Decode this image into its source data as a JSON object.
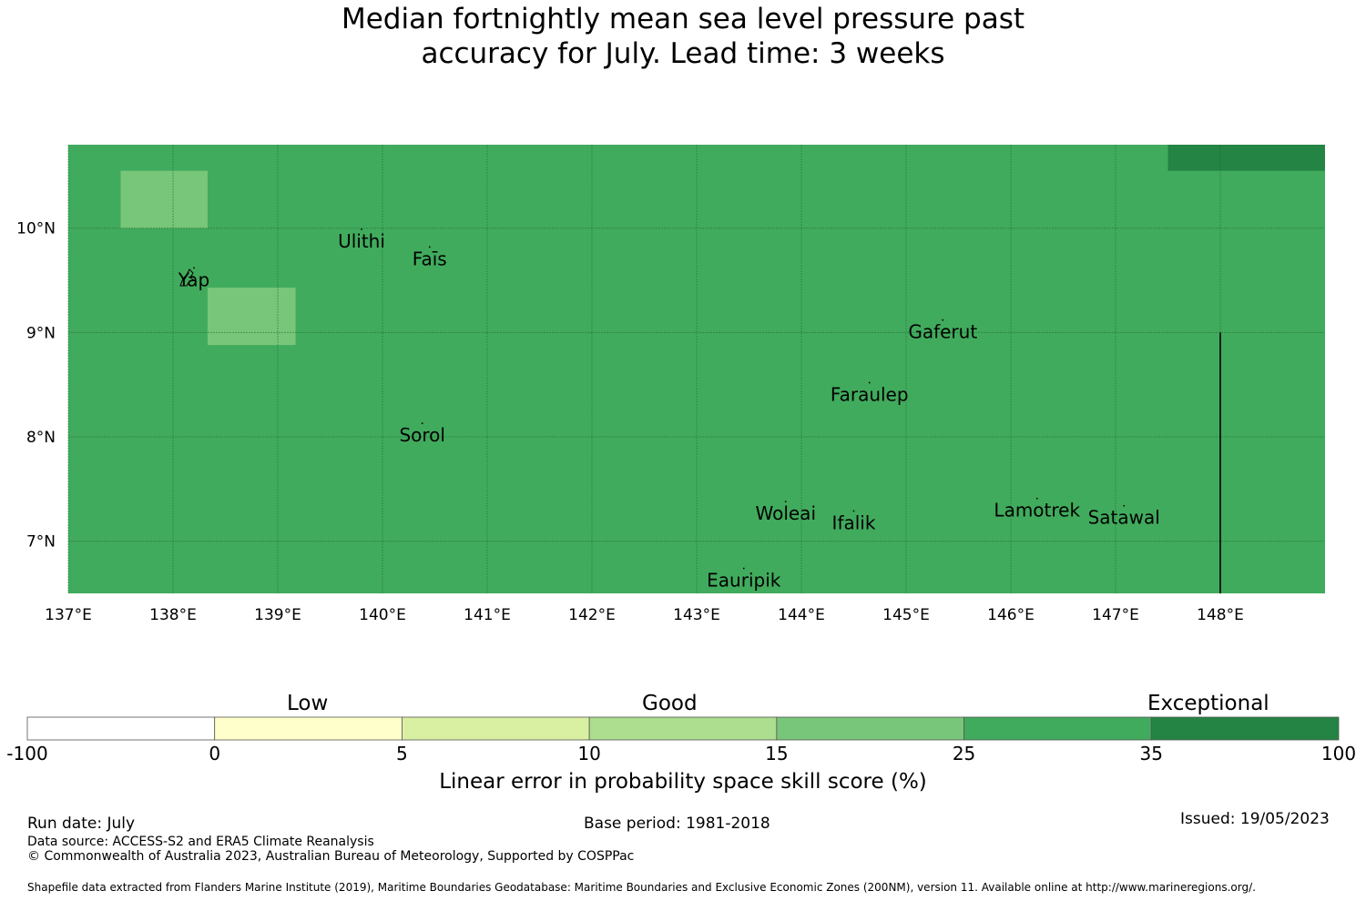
{
  "title": {
    "line1": "Median fortnightly mean sea level pressure past",
    "line2": "accuracy for July. Lead time: 3 weeks"
  },
  "map": {
    "lon_ticks": [
      "137°E",
      "138°E",
      "139°E",
      "140°E",
      "141°E",
      "142°E",
      "143°E",
      "144°E",
      "145°E",
      "146°E",
      "147°E",
      "148°E"
    ],
    "lat_ticks": [
      "10°N",
      "9°N",
      "8°N",
      "7°N"
    ],
    "extent": {
      "lon": [
        137.0,
        149.0
      ],
      "lat": [
        6.5,
        10.8
      ]
    },
    "base_value": 30,
    "patches": [
      {
        "lon": [
          137.5,
          138.33
        ],
        "lat": [
          10.0,
          10.55
        ],
        "value": 20
      },
      {
        "lon": [
          138.33,
          139.17
        ],
        "lat": [
          8.88,
          9.43
        ],
        "value": 20
      },
      {
        "lon": [
          147.5,
          149.0
        ],
        "lat": [
          10.55,
          10.8
        ],
        "value": 50
      }
    ],
    "places": [
      {
        "name": "Ulithi",
        "lon": 139.8,
        "lat": 9.85
      },
      {
        "name": "Faīs",
        "lon": 140.45,
        "lat": 9.68
      },
      {
        "name": "Yap",
        "lon": 138.2,
        "lat": 9.48
      },
      {
        "name": "Gaferut",
        "lon": 145.35,
        "lat": 8.98
      },
      {
        "name": "Faraulep",
        "lon": 144.65,
        "lat": 8.38
      },
      {
        "name": "Sorol",
        "lon": 140.38,
        "lat": 7.99
      },
      {
        "name": "Woleai",
        "lon": 143.85,
        "lat": 7.24
      },
      {
        "name": "Ifalik",
        "lon": 144.5,
        "lat": 7.15
      },
      {
        "name": "Lamotrek",
        "lon": 146.25,
        "lat": 7.27
      },
      {
        "name": "Satawal",
        "lon": 147.08,
        "lat": 7.2
      },
      {
        "name": "Eauripik",
        "lon": 143.45,
        "lat": 6.6
      }
    ],
    "boundary_line": {
      "lon": 148.0,
      "lat": [
        6.5,
        9.0
      ]
    }
  },
  "colorbar": {
    "categories": [
      "Low",
      "Good",
      "Exceptional"
    ],
    "ticks": [
      "-100",
      "0",
      "5",
      "10",
      "15",
      "25",
      "35",
      "100"
    ],
    "bins": [
      {
        "from": -100,
        "to": 0,
        "color": "#ffffff"
      },
      {
        "from": 0,
        "to": 5,
        "color": "#ffffcc"
      },
      {
        "from": 5,
        "to": 10,
        "color": "#d9f0a3"
      },
      {
        "from": 10,
        "to": 15,
        "color": "#addd8e"
      },
      {
        "from": 15,
        "to": 25,
        "color": "#78c679"
      },
      {
        "from": 25,
        "to": 35,
        "color": "#41ab5d"
      },
      {
        "from": 35,
        "to": 100,
        "color": "#238443"
      }
    ],
    "label": "Linear error in probability space skill score (%)"
  },
  "footer": {
    "run_date": "Run date: July",
    "base_period": "Base period: 1981-2018",
    "issued": "Issued: 19/05/2023",
    "data_source": "Data source: ACCESS-S2 and ERA5 Climate Reanalysis",
    "copyright": "© Commonwealth of Australia 2023, Australian Bureau of Meteorology, Supported by COSPPac",
    "shapefile": "Shapefile data extracted from Flanders Marine Institute (2019), Maritime Boundaries Geodatabase: Maritime Boundaries and Exclusive Economic Zones (200NM), version 11. Available online at http://www.marineregions.org/."
  }
}
